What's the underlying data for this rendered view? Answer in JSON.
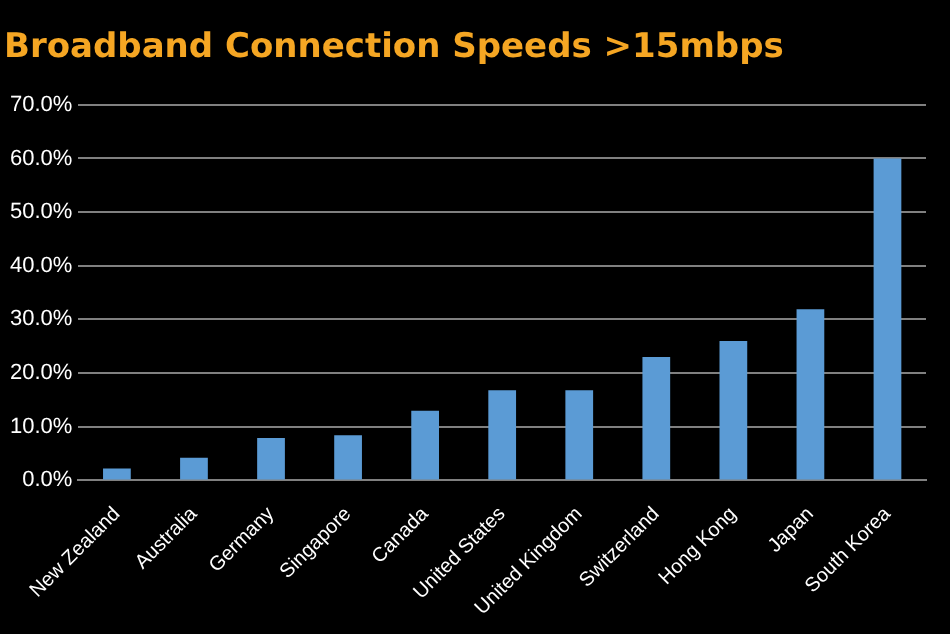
{
  "chart_data": {
    "type": "bar",
    "title": "Broadband Connection Speeds >15mbps",
    "categories": [
      "New Zealand",
      "Australia",
      "Germany",
      "Singapore",
      "Canada",
      "United States",
      "United Kingdom",
      "Switzerland",
      "Hong Kong",
      "Japan",
      "South Korea"
    ],
    "values": [
      2.2,
      4.2,
      7.9,
      8.4,
      13.0,
      16.8,
      16.8,
      23.0,
      26.0,
      31.9,
      60.0
    ],
    "color": "#5b9bd5",
    "ylim": [
      0,
      70
    ],
    "yticks": [
      {
        "value": 0,
        "label": "0.0%"
      },
      {
        "value": 10,
        "label": "10.0%"
      },
      {
        "value": 20,
        "label": "20.0%"
      },
      {
        "value": 30,
        "label": "30.0%"
      },
      {
        "value": 40,
        "label": "40.0%"
      },
      {
        "value": 50,
        "label": "50.0%"
      },
      {
        "value": 60,
        "label": "60.0%"
      },
      {
        "value": 70,
        "label": "70.0%"
      }
    ],
    "grid": "y",
    "legend": false
  }
}
